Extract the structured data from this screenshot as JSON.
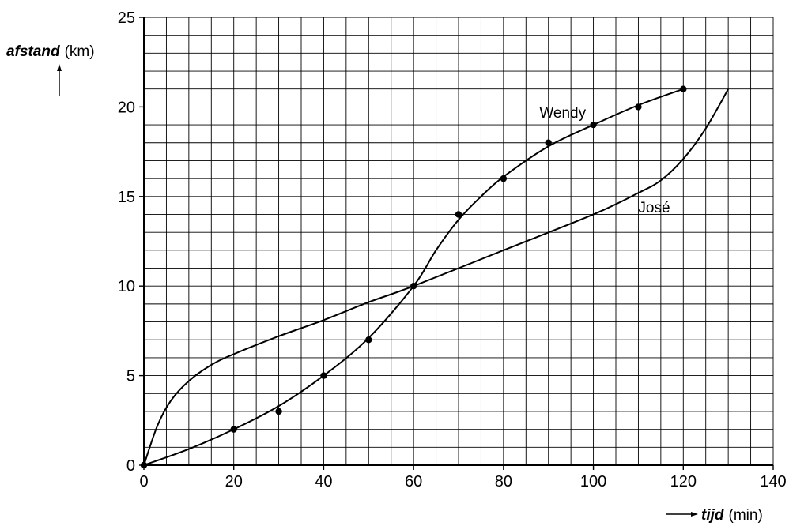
{
  "chart_data": {
    "type": "line",
    "xlabel": {
      "name": "tijd",
      "unit": "(min)"
    },
    "ylabel": {
      "name": "afstand",
      "unit": "(km)"
    },
    "xlim": [
      0,
      140
    ],
    "ylim": [
      0,
      25
    ],
    "x_ticks": [
      0,
      20,
      40,
      60,
      80,
      100,
      120,
      140
    ],
    "y_ticks": [
      0,
      5,
      10,
      15,
      20,
      25
    ],
    "grid": {
      "x_step": 5,
      "y_step": 1
    },
    "series": [
      {
        "name": "Wendy",
        "markers": true,
        "points": [
          [
            0,
            0
          ],
          [
            20,
            2
          ],
          [
            30,
            3
          ],
          [
            40,
            5
          ],
          [
            50,
            7
          ],
          [
            60,
            10
          ],
          [
            70,
            14
          ],
          [
            80,
            16
          ],
          [
            90,
            18
          ],
          [
            100,
            19
          ],
          [
            110,
            20
          ],
          [
            120,
            21
          ]
        ],
        "curve": [
          [
            0,
            0
          ],
          [
            10,
            0.9
          ],
          [
            20,
            2
          ],
          [
            30,
            3.3
          ],
          [
            40,
            5
          ],
          [
            50,
            7.1
          ],
          [
            60,
            10
          ],
          [
            65,
            12
          ],
          [
            70,
            13.7
          ],
          [
            75,
            15
          ],
          [
            80,
            16.1
          ],
          [
            90,
            17.8
          ],
          [
            100,
            19
          ],
          [
            110,
            20.1
          ],
          [
            120,
            21
          ]
        ],
        "label_at": [
          88,
          19.4
        ]
      },
      {
        "name": "José",
        "markers": false,
        "points": [],
        "curve": [
          [
            0,
            0
          ],
          [
            3,
            2.2
          ],
          [
            6,
            3.6
          ],
          [
            10,
            4.7
          ],
          [
            15,
            5.6
          ],
          [
            20,
            6.2
          ],
          [
            30,
            7.2
          ],
          [
            40,
            8.1
          ],
          [
            50,
            9.1
          ],
          [
            60,
            10
          ],
          [
            80,
            12
          ],
          [
            100,
            14
          ],
          [
            110,
            15.2
          ],
          [
            115,
            15.9
          ],
          [
            120,
            17.1
          ],
          [
            125,
            18.8
          ],
          [
            130,
            21
          ]
        ],
        "label_at": [
          110,
          14.1
        ]
      }
    ]
  }
}
